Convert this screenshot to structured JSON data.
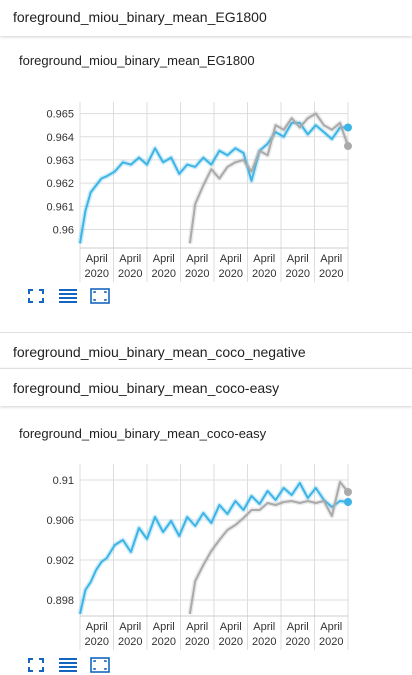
{
  "sections": [
    {
      "title": "foreground_miou_binary_mean_EG1800"
    },
    {
      "title": "foreground_miou_binary_mean_coco_negative"
    },
    {
      "title": "foreground_miou_binary_mean_coco-easy"
    }
  ],
  "colors": {
    "series_blue": "#3cb4e6",
    "series_gray": "#aaaaaa",
    "grid": "#dddddd",
    "icon": "#1565c0"
  },
  "icons": [
    "fullscreen-icon",
    "data-table-icon",
    "fit-domain-icon"
  ],
  "chart_data": [
    {
      "type": "line",
      "title": "foreground_miou_binary_mean_EG1800",
      "ylim": [
        0.9592,
        0.9655
      ],
      "yticks": [
        "0.96",
        "0.961",
        "0.962",
        "0.963",
        "0.964",
        "0.965"
      ],
      "ytick_values": [
        0.96,
        0.961,
        0.962,
        0.963,
        0.964,
        0.965
      ],
      "xticks": [
        "April 2020",
        "April 2020",
        "April 2020",
        "April 2020",
        "April 2020",
        "April 2020",
        "April 2020",
        "April 2020"
      ],
      "grid": true,
      "series": [
        {
          "color": "#3cb4e6",
          "x": [
            0.0,
            0.02,
            0.04,
            0.06,
            0.08,
            0.1,
            0.13,
            0.16,
            0.19,
            0.22,
            0.25,
            0.28,
            0.31,
            0.34,
            0.37,
            0.4,
            0.43,
            0.46,
            0.49,
            0.52,
            0.55,
            0.58,
            0.61,
            0.64,
            0.67,
            0.7,
            0.73,
            0.76,
            0.79,
            0.82,
            0.85,
            0.88,
            0.91,
            0.94,
            0.97,
            1.0
          ],
          "y": [
            0.9594,
            0.9608,
            0.9616,
            0.9619,
            0.9622,
            0.9623,
            0.9625,
            0.9629,
            0.9628,
            0.9631,
            0.9628,
            0.9635,
            0.9629,
            0.9631,
            0.9624,
            0.9628,
            0.9627,
            0.9631,
            0.9628,
            0.9634,
            0.9632,
            0.9635,
            0.9633,
            0.9621,
            0.9634,
            0.9637,
            0.9642,
            0.964,
            0.9646,
            0.9646,
            0.9641,
            0.9645,
            0.9642,
            0.9639,
            0.9644,
            0.9644
          ]
        },
        {
          "color": "#aaaaaa",
          "x": [
            0.41,
            0.43,
            0.46,
            0.49,
            0.52,
            0.55,
            0.58,
            0.61,
            0.64,
            0.67,
            0.7,
            0.73,
            0.76,
            0.79,
            0.82,
            0.85,
            0.88,
            0.91,
            0.94,
            0.97,
            1.0
          ],
          "y": [
            0.9594,
            0.9611,
            0.9619,
            0.9626,
            0.9622,
            0.9627,
            0.9629,
            0.963,
            0.9625,
            0.9634,
            0.9632,
            0.9645,
            0.9643,
            0.9648,
            0.9644,
            0.9648,
            0.965,
            0.9645,
            0.9643,
            0.9646,
            0.9636
          ]
        }
      ]
    },
    {
      "type": "line",
      "title": "foreground_miou_binary_mean_coco-easy",
      "ylim": [
        0.8964,
        0.9116
      ],
      "yticks": [
        "0.898",
        "0.902",
        "0.906",
        "0.91"
      ],
      "ytick_values": [
        0.898,
        0.902,
        0.906,
        0.91
      ],
      "xticks": [
        "April 2020",
        "April 2020",
        "April 2020",
        "April 2020",
        "April 2020",
        "April 2020",
        "April 2020",
        "April 2020"
      ],
      "grid": true,
      "series": [
        {
          "color": "#3cb4e6",
          "x": [
            0.0,
            0.02,
            0.04,
            0.06,
            0.08,
            0.1,
            0.13,
            0.16,
            0.19,
            0.22,
            0.25,
            0.28,
            0.31,
            0.34,
            0.37,
            0.4,
            0.43,
            0.46,
            0.49,
            0.52,
            0.55,
            0.58,
            0.61,
            0.64,
            0.67,
            0.7,
            0.73,
            0.76,
            0.79,
            0.82,
            0.85,
            0.88,
            0.91,
            0.94,
            0.97,
            1.0
          ],
          "y": [
            0.8966,
            0.899,
            0.8998,
            0.901,
            0.9018,
            0.9022,
            0.9035,
            0.904,
            0.9028,
            0.9052,
            0.9041,
            0.9063,
            0.9048,
            0.9059,
            0.9044,
            0.9063,
            0.9054,
            0.9067,
            0.9057,
            0.9075,
            0.9066,
            0.9079,
            0.907,
            0.9084,
            0.9076,
            0.9089,
            0.908,
            0.9092,
            0.9085,
            0.9097,
            0.9082,
            0.9092,
            0.908,
            0.9073,
            0.9079,
            0.9078
          ]
        },
        {
          "color": "#aaaaaa",
          "x": [
            0.41,
            0.43,
            0.46,
            0.49,
            0.52,
            0.55,
            0.58,
            0.61,
            0.64,
            0.67,
            0.7,
            0.73,
            0.76,
            0.79,
            0.82,
            0.85,
            0.88,
            0.91,
            0.94,
            0.97,
            1.0
          ],
          "y": [
            0.8966,
            0.8999,
            0.9015,
            0.9029,
            0.904,
            0.905,
            0.9055,
            0.9062,
            0.907,
            0.907,
            0.9077,
            0.9075,
            0.9078,
            0.9079,
            0.9077,
            0.9079,
            0.9077,
            0.9079,
            0.9064,
            0.9098,
            0.9088
          ]
        }
      ]
    }
  ]
}
